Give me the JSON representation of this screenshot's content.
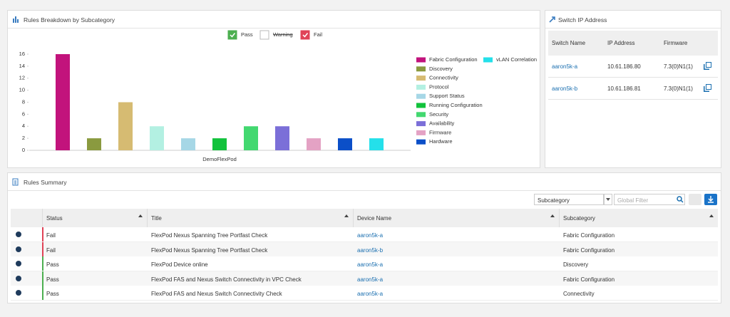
{
  "chart_panel": {
    "title": "Rules Breakdown by Subcategory",
    "filters": [
      {
        "label": "Pass",
        "checked": true,
        "color": "#4caf50"
      },
      {
        "label": "Warning",
        "checked": false,
        "color": "#e0a020"
      },
      {
        "label": "Fail",
        "checked": true,
        "color": "#e04357"
      }
    ]
  },
  "chart_data": {
    "type": "bar",
    "categories": [
      "DemoFlexPod"
    ],
    "ylim": [
      0,
      16
    ],
    "yticks": [
      0,
      2,
      4,
      6,
      8,
      10,
      12,
      14,
      16
    ],
    "series": [
      {
        "name": "Fabric Configuration",
        "color": "#c2137c",
        "values": [
          16
        ]
      },
      {
        "name": "Discovery",
        "color": "#8a9a3f",
        "values": [
          2
        ]
      },
      {
        "name": "Connectivity",
        "color": "#d6bb72",
        "values": [
          8
        ]
      },
      {
        "name": "Protocol",
        "color": "#b3f0e2",
        "values": [
          4
        ]
      },
      {
        "name": "Support Status",
        "color": "#a6d7e6",
        "values": [
          2
        ]
      },
      {
        "name": "Running Configuration",
        "color": "#12c23c",
        "values": [
          2
        ]
      },
      {
        "name": "Security",
        "color": "#43d870",
        "values": [
          4
        ]
      },
      {
        "name": "Availability",
        "color": "#7b6fd8",
        "values": [
          4
        ]
      },
      {
        "name": "Firmware",
        "color": "#e4a2c4",
        "values": [
          2
        ]
      },
      {
        "name": "Hardware",
        "color": "#0b4fc8",
        "values": [
          2
        ]
      },
      {
        "name": "vLAN Correlation",
        "color": "#24e0ea",
        "values": [
          2
        ]
      }
    ]
  },
  "switch_panel": {
    "title": "Switch IP Address",
    "columns": [
      "Switch Name",
      "IP Address",
      "Firmware"
    ],
    "rows": [
      [
        "aaron5k-a",
        "10.61.186.80",
        "7.3(0)N1(1)"
      ],
      [
        "aaron5k-b",
        "10.61.186.81",
        "7.3(0)N1(1)"
      ]
    ]
  },
  "rules_panel": {
    "title": "Rules Summary",
    "group_by": "Subcategory",
    "filter_placeholder": "Global Filter",
    "columns": [
      "Status",
      "Title",
      "Device Name",
      "Subcategory"
    ],
    "rows": [
      [
        "Fail",
        "FlexPod Nexus Spanning Tree Portfast Check",
        "aaron5k-a",
        "Fabric Configuration"
      ],
      [
        "Fail",
        "FlexPod Nexus Spanning Tree Portfast Check",
        "aaron5k-b",
        "Fabric Configuration"
      ],
      [
        "Pass",
        "FlexPod Device online",
        "aaron5k-a",
        "Discovery"
      ],
      [
        "Pass",
        "FlexPod FAS and Nexus Switch Connectivity in VPC Check",
        "aaron5k-a",
        "Fabric Configuration"
      ],
      [
        "Pass",
        "FlexPod FAS and Nexus Switch Connectivity Check",
        "aaron5k-a",
        "Connectivity"
      ]
    ]
  }
}
